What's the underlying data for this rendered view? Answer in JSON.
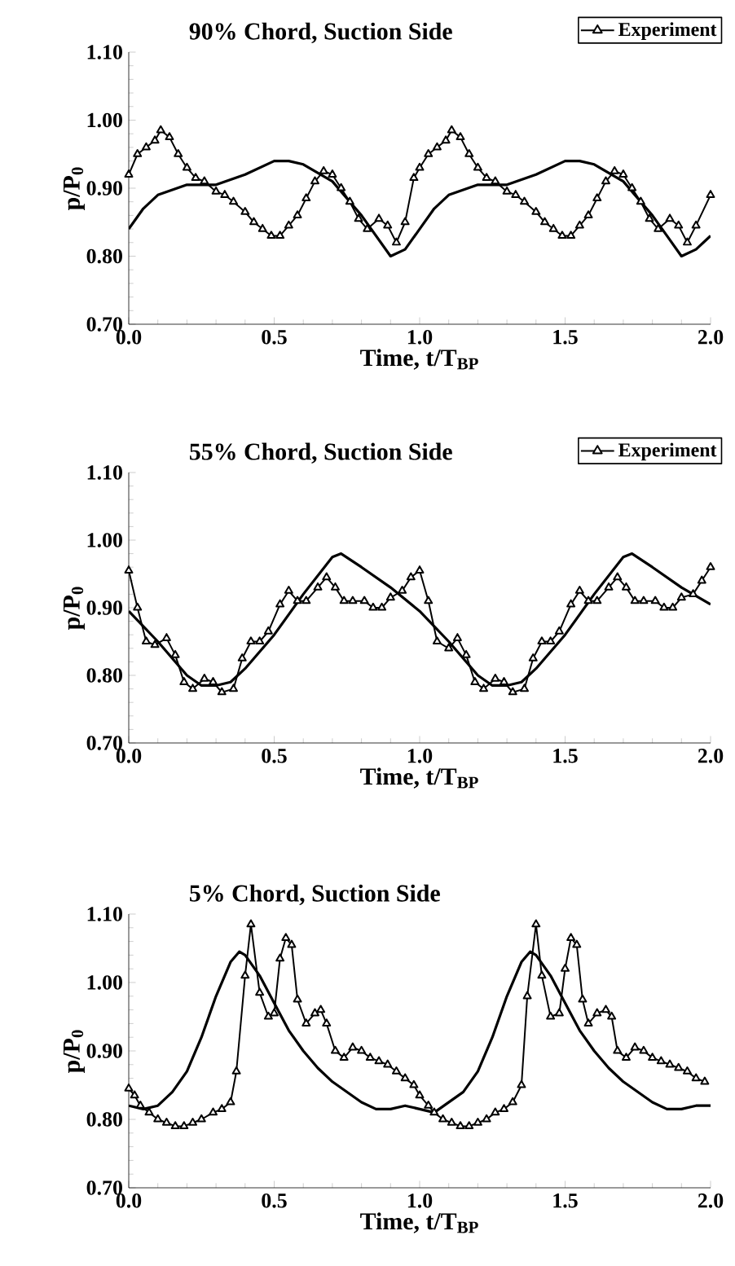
{
  "chart_data": [
    {
      "type": "line",
      "title": "90% Chord, Suction Side",
      "xlabel": "Time, t/T$_{BP}$",
      "ylabel": "p/P$_{0}$",
      "xlim": [
        0,
        2
      ],
      "ylim": [
        0.7,
        1.1
      ],
      "xticks": [
        {
          "value": 0,
          "label": "0.0"
        },
        {
          "value": 0.5,
          "label": "0.5"
        },
        {
          "value": 1,
          "label": "1.0"
        },
        {
          "value": 1.5,
          "label": "1.5"
        },
        {
          "value": 2,
          "label": "2.0"
        }
      ],
      "yticks": [
        {
          "value": 0.7,
          "label": "0.70"
        },
        {
          "value": 0.8,
          "label": "0.80"
        },
        {
          "value": 0.9,
          "label": "0.90"
        },
        {
          "value": 1.0,
          "label": "1.00"
        },
        {
          "value": 1.1,
          "label": "1.10"
        }
      ],
      "legend": "top right",
      "grid": false,
      "series": [
        {
          "color": "#000000",
          "marker": "none",
          "line_style": "solid",
          "x": [
            0,
            0.05,
            0.1,
            0.2,
            0.3,
            0.4,
            0.5,
            0.55,
            0.6,
            0.7,
            0.8,
            0.85,
            0.9,
            0.95,
            1.0,
            1.05,
            1.1,
            1.2,
            1.3,
            1.4,
            1.5,
            1.55,
            1.6,
            1.7,
            1.8,
            1.85,
            1.9,
            1.95,
            2.0
          ],
          "values": [
            0.84,
            0.87,
            0.89,
            0.905,
            0.905,
            0.92,
            0.94,
            0.94,
            0.935,
            0.91,
            0.86,
            0.83,
            0.8,
            0.81,
            0.84,
            0.87,
            0.89,
            0.905,
            0.905,
            0.92,
            0.94,
            0.94,
            0.935,
            0.91,
            0.86,
            0.83,
            0.8,
            0.81,
            0.83
          ]
        },
        {
          "name": "Experiment",
          "color": "#000000",
          "marker": "triangle",
          "line_style": "solid",
          "x": [
            0,
            0.03,
            0.06,
            0.09,
            0.11,
            0.14,
            0.17,
            0.2,
            0.23,
            0.26,
            0.3,
            0.33,
            0.36,
            0.4,
            0.43,
            0.46,
            0.49,
            0.52,
            0.55,
            0.58,
            0.61,
            0.64,
            0.67,
            0.7,
            0.73,
            0.76,
            0.79,
            0.82,
            0.86,
            0.89,
            0.92,
            0.95,
            0.98,
            1.0,
            1.03,
            1.06,
            1.09,
            1.11,
            1.14,
            1.17,
            1.2,
            1.23,
            1.26,
            1.3,
            1.33,
            1.36,
            1.4,
            1.43,
            1.46,
            1.49,
            1.52,
            1.55,
            1.58,
            1.61,
            1.64,
            1.67,
            1.7,
            1.73,
            1.76,
            1.79,
            1.82,
            1.86,
            1.89,
            1.92,
            1.95,
            2.0
          ],
          "values": [
            0.92,
            0.95,
            0.96,
            0.97,
            0.985,
            0.975,
            0.95,
            0.93,
            0.915,
            0.91,
            0.895,
            0.89,
            0.88,
            0.865,
            0.85,
            0.84,
            0.83,
            0.83,
            0.845,
            0.86,
            0.885,
            0.91,
            0.925,
            0.92,
            0.9,
            0.88,
            0.855,
            0.84,
            0.855,
            0.845,
            0.82,
            0.85,
            0.915,
            0.93,
            0.95,
            0.96,
            0.97,
            0.985,
            0.975,
            0.95,
            0.93,
            0.915,
            0.91,
            0.895,
            0.89,
            0.88,
            0.865,
            0.85,
            0.84,
            0.83,
            0.83,
            0.845,
            0.86,
            0.885,
            0.91,
            0.925,
            0.92,
            0.9,
            0.88,
            0.855,
            0.84,
            0.855,
            0.845,
            0.82,
            0.845,
            0.89
          ]
        }
      ]
    },
    {
      "type": "line",
      "title": "55% Chord, Suction Side",
      "xlabel": "Time, t/T$_{BP}$",
      "ylabel": "p/P$_{0}$",
      "xlim": [
        0,
        2
      ],
      "ylim": [
        0.7,
        1.1
      ],
      "xticks": [
        {
          "value": 0,
          "label": "0.0"
        },
        {
          "value": 0.5,
          "label": "0.5"
        },
        {
          "value": 1,
          "label": "1.0"
        },
        {
          "value": 1.5,
          "label": "1.5"
        },
        {
          "value": 2,
          "label": "2.0"
        }
      ],
      "yticks": [
        {
          "value": 0.7,
          "label": "0.70"
        },
        {
          "value": 0.8,
          "label": "0.80"
        },
        {
          "value": 0.9,
          "label": "0.90"
        },
        {
          "value": 1.0,
          "label": "1.00"
        },
        {
          "value": 1.1,
          "label": "1.10"
        }
      ],
      "legend": "top right",
      "grid": false,
      "series": [
        {
          "color": "#000000",
          "marker": "none",
          "line_style": "solid",
          "x": [
            0,
            0.1,
            0.2,
            0.25,
            0.3,
            0.35,
            0.4,
            0.5,
            0.6,
            0.7,
            0.73,
            0.8,
            0.9,
            1.0,
            1.1,
            1.2,
            1.25,
            1.3,
            1.35,
            1.4,
            1.5,
            1.6,
            1.7,
            1.73,
            1.8,
            1.9,
            2.0
          ],
          "values": [
            0.895,
            0.85,
            0.8,
            0.785,
            0.785,
            0.79,
            0.81,
            0.86,
            0.92,
            0.975,
            0.98,
            0.96,
            0.93,
            0.895,
            0.85,
            0.8,
            0.785,
            0.785,
            0.79,
            0.81,
            0.86,
            0.92,
            0.975,
            0.98,
            0.96,
            0.93,
            0.905
          ]
        },
        {
          "name": "Experiment",
          "color": "#000000",
          "marker": "triangle",
          "line_style": "solid",
          "x": [
            0,
            0.03,
            0.06,
            0.09,
            0.13,
            0.16,
            0.19,
            0.22,
            0.26,
            0.29,
            0.32,
            0.36,
            0.39,
            0.42,
            0.45,
            0.48,
            0.52,
            0.55,
            0.58,
            0.61,
            0.65,
            0.68,
            0.71,
            0.74,
            0.77,
            0.81,
            0.84,
            0.87,
            0.9,
            0.94,
            0.97,
            1.0,
            1.03,
            1.06,
            1.1,
            1.13,
            1.16,
            1.19,
            1.22,
            1.26,
            1.29,
            1.32,
            1.36,
            1.39,
            1.42,
            1.45,
            1.48,
            1.52,
            1.55,
            1.58,
            1.61,
            1.65,
            1.68,
            1.71,
            1.74,
            1.77,
            1.81,
            1.84,
            1.87,
            1.9,
            1.94,
            1.97,
            2.0
          ],
          "values": [
            0.955,
            0.9,
            0.85,
            0.845,
            0.855,
            0.83,
            0.79,
            0.78,
            0.795,
            0.79,
            0.775,
            0.78,
            0.825,
            0.85,
            0.85,
            0.865,
            0.905,
            0.925,
            0.91,
            0.91,
            0.93,
            0.945,
            0.93,
            0.91,
            0.91,
            0.91,
            0.9,
            0.9,
            0.915,
            0.925,
            0.945,
            0.955,
            0.91,
            0.85,
            0.84,
            0.855,
            0.83,
            0.79,
            0.78,
            0.795,
            0.79,
            0.775,
            0.78,
            0.825,
            0.85,
            0.85,
            0.865,
            0.905,
            0.925,
            0.91,
            0.91,
            0.93,
            0.945,
            0.93,
            0.91,
            0.91,
            0.91,
            0.9,
            0.9,
            0.915,
            0.92,
            0.94,
            0.96
          ]
        }
      ]
    },
    {
      "type": "line",
      "title": "5% Chord, Suction Side",
      "xlabel": "Time, t/T$_{BP}$",
      "ylabel": "p/P$_{0}$",
      "xlim": [
        0,
        2
      ],
      "ylim": [
        0.7,
        1.1
      ],
      "xticks": [
        {
          "value": 0,
          "label": "0.0"
        },
        {
          "value": 0.5,
          "label": "0.5"
        },
        {
          "value": 1,
          "label": "1.0"
        },
        {
          "value": 1.5,
          "label": "1.5"
        },
        {
          "value": 2,
          "label": "2.0"
        }
      ],
      "yticks": [
        {
          "value": 0.7,
          "label": "0.70"
        },
        {
          "value": 0.8,
          "label": "0.80"
        },
        {
          "value": 0.9,
          "label": "0.90"
        },
        {
          "value": 1.0,
          "label": "1.00"
        },
        {
          "value": 1.1,
          "label": "1.10"
        }
      ],
      "grid": false,
      "series": [
        {
          "color": "#000000",
          "marker": "none",
          "line_style": "solid",
          "x": [
            0,
            0.05,
            0.1,
            0.15,
            0.2,
            0.25,
            0.3,
            0.35,
            0.38,
            0.4,
            0.45,
            0.5,
            0.55,
            0.6,
            0.65,
            0.7,
            0.75,
            0.8,
            0.85,
            0.9,
            0.95,
            1.0,
            1.05,
            1.1,
            1.15,
            1.2,
            1.25,
            1.3,
            1.35,
            1.38,
            1.4,
            1.45,
            1.5,
            1.55,
            1.6,
            1.65,
            1.7,
            1.75,
            1.8,
            1.85,
            1.9,
            1.95,
            2.0
          ],
          "values": [
            0.82,
            0.815,
            0.82,
            0.84,
            0.87,
            0.92,
            0.98,
            1.03,
            1.045,
            1.04,
            1.01,
            0.97,
            0.93,
            0.9,
            0.875,
            0.855,
            0.84,
            0.825,
            0.815,
            0.815,
            0.82,
            0.815,
            0.81,
            0.825,
            0.84,
            0.87,
            0.92,
            0.98,
            1.03,
            1.045,
            1.04,
            1.01,
            0.97,
            0.93,
            0.9,
            0.875,
            0.855,
            0.84,
            0.825,
            0.815,
            0.815,
            0.82,
            0.82
          ]
        },
        {
          "color": "#000000",
          "marker": "triangle",
          "line_style": "solid",
          "x": [
            0,
            0.02,
            0.04,
            0.07,
            0.1,
            0.13,
            0.16,
            0.19,
            0.22,
            0.25,
            0.29,
            0.32,
            0.35,
            0.37,
            0.4,
            0.42,
            0.45,
            0.48,
            0.5,
            0.52,
            0.54,
            0.56,
            0.58,
            0.61,
            0.64,
            0.66,
            0.68,
            0.71,
            0.74,
            0.77,
            0.8,
            0.83,
            0.86,
            0.89,
            0.92,
            0.95,
            0.98,
            1.0,
            1.03,
            1.05,
            1.08,
            1.11,
            1.14,
            1.17,
            1.2,
            1.23,
            1.26,
            1.29,
            1.32,
            1.35,
            1.37,
            1.4,
            1.42,
            1.45,
            1.48,
            1.5,
            1.52,
            1.54,
            1.56,
            1.58,
            1.61,
            1.64,
            1.66,
            1.68,
            1.71,
            1.74,
            1.77,
            1.8,
            1.83,
            1.86,
            1.89,
            1.92,
            1.95,
            1.98
          ],
          "values": [
            0.845,
            0.835,
            0.82,
            0.81,
            0.8,
            0.795,
            0.79,
            0.79,
            0.795,
            0.8,
            0.81,
            0.815,
            0.825,
            0.87,
            1.01,
            1.085,
            0.985,
            0.95,
            0.955,
            1.035,
            1.065,
            1.055,
            0.975,
            0.94,
            0.955,
            0.96,
            0.94,
            0.9,
            0.89,
            0.905,
            0.9,
            0.89,
            0.885,
            0.88,
            0.87,
            0.86,
            0.85,
            0.835,
            0.82,
            0.81,
            0.8,
            0.795,
            0.79,
            0.79,
            0.795,
            0.8,
            0.81,
            0.815,
            0.825,
            0.85,
            0.98,
            1.085,
            1.01,
            0.95,
            0.955,
            1.02,
            1.065,
            1.055,
            0.975,
            0.94,
            0.955,
            0.96,
            0.95,
            0.9,
            0.89,
            0.905,
            0.9,
            0.89,
            0.885,
            0.88,
            0.875,
            0.87,
            0.86,
            0.855
          ]
        }
      ]
    }
  ]
}
